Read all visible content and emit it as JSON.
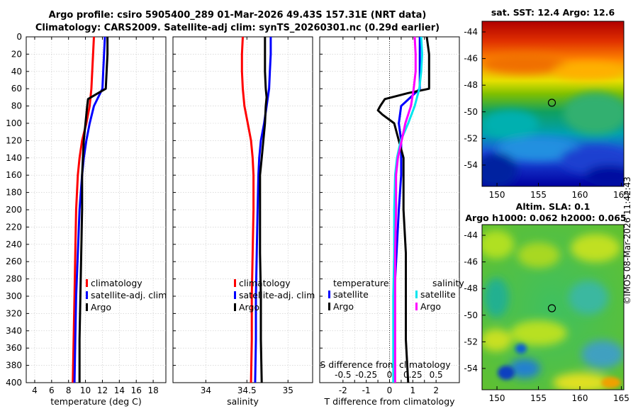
{
  "header": {
    "line1": "Argo profile: csiro 5905400_289 01-Mar-2026 49.43S 157.31E (NRT data)",
    "line2": "Climatology: CARS2009. Satellite-adj clim: synTS_20260301.nc (0.29d earlier)"
  },
  "maps": {
    "sst_title": "sat. SST: 12.4 Argo: 12.6",
    "sla_title1": "Altim. SLA: 0.1",
    "sla_title2": "Argo h1000: 0.062 h2000: 0.065",
    "lat_ticks": [
      "-44",
      "-46",
      "-48",
      "-50",
      "-52",
      "-54"
    ],
    "lon_ticks": [
      "150",
      "155",
      "160",
      "165"
    ]
  },
  "credit": "©IMOS 08-Mar-2026 11:42:43",
  "colors": {
    "climatology": "#ff0000",
    "satellite": "#0000ff",
    "argo": "#000000",
    "sal_satellite": "#00e5ee",
    "sal_argo": "#ff00ff"
  },
  "chart_data": [
    {
      "type": "line",
      "title": "",
      "xlabel": "temperature (deg C)",
      "ylabel": "",
      "xlim": [
        3,
        19.5
      ],
      "ylim": [
        400,
        0
      ],
      "x_ticks": [
        "4",
        "6",
        "8",
        "10",
        "12",
        "14",
        "16",
        "18"
      ],
      "y_ticks": [
        "0",
        "20",
        "40",
        "60",
        "80",
        "100",
        "120",
        "140",
        "160",
        "180",
        "200",
        "220",
        "240",
        "260",
        "280",
        "300",
        "320",
        "340",
        "360",
        "380",
        "400"
      ],
      "legend": [
        "climatology",
        "satellite-adj. clim",
        "Argo"
      ],
      "series": [
        {
          "name": "climatology",
          "depth": [
            0,
            20,
            40,
            60,
            80,
            100,
            120,
            140,
            160,
            200,
            250,
            300,
            350,
            400
          ],
          "values": [
            11.0,
            10.9,
            10.8,
            10.7,
            10.5,
            10.1,
            9.6,
            9.3,
            9.1,
            8.9,
            8.8,
            8.7,
            8.6,
            8.5
          ]
        },
        {
          "name": "satellite-adj. clim",
          "depth": [
            0,
            20,
            40,
            60,
            80,
            100,
            120,
            140,
            160,
            200,
            250,
            300,
            350,
            400
          ],
          "values": [
            12.3,
            12.2,
            12.1,
            12.0,
            11.0,
            10.5,
            10.1,
            9.8,
            9.6,
            9.3,
            9.1,
            8.9,
            8.8,
            8.7
          ]
        },
        {
          "name": "Argo",
          "depth": [
            0,
            10,
            20,
            40,
            60,
            65,
            72,
            80,
            100,
            120,
            140,
            160,
            200,
            250,
            300,
            350,
            400
          ],
          "values": [
            12.6,
            12.6,
            12.6,
            12.5,
            12.4,
            11.5,
            10.3,
            10.2,
            10.0,
            9.8,
            9.7,
            9.6,
            9.6,
            9.5,
            9.4,
            9.3,
            9.3
          ]
        }
      ]
    },
    {
      "type": "line",
      "title": "",
      "xlabel": "salinity",
      "ylabel": "",
      "xlim": [
        33.6,
        35.3
      ],
      "ylim": [
        400,
        0
      ],
      "x_ticks": [
        "34",
        "34.5",
        "35"
      ],
      "legend": [
        "climatology",
        "satellite-adj. clim",
        "Argo"
      ],
      "series": [
        {
          "name": "climatology",
          "depth": [
            0,
            20,
            40,
            60,
            80,
            100,
            120,
            140,
            160,
            200,
            250,
            300,
            350,
            400
          ],
          "values": [
            34.45,
            34.44,
            34.44,
            34.45,
            34.47,
            34.51,
            34.55,
            34.57,
            34.58,
            34.58,
            34.57,
            34.56,
            34.56,
            34.55
          ]
        },
        {
          "name": "satellite-adj. clim",
          "depth": [
            0,
            20,
            40,
            60,
            80,
            100,
            120,
            140,
            160,
            200,
            250,
            300,
            350,
            400
          ],
          "values": [
            34.79,
            34.79,
            34.78,
            34.77,
            34.74,
            34.71,
            34.67,
            34.65,
            34.64,
            34.63,
            34.62,
            34.61,
            34.61,
            34.6
          ]
        },
        {
          "name": "Argo",
          "depth": [
            0,
            20,
            40,
            60,
            70,
            80,
            100,
            120,
            140,
            160,
            200,
            250,
            300,
            350,
            400
          ],
          "values": [
            34.72,
            34.72,
            34.72,
            34.73,
            34.74,
            34.73,
            34.72,
            34.7,
            34.68,
            34.66,
            34.66,
            34.66,
            34.67,
            34.67,
            34.68
          ]
        }
      ]
    },
    {
      "type": "line",
      "title": "",
      "xlabel": "T difference from climatology",
      "x2label": "S difference from climatology",
      "ylabel": "",
      "xlim": [
        -3,
        3
      ],
      "ylim": [
        400,
        0
      ],
      "x_ticks": [
        "-2",
        "-1.5",
        "-1",
        "-0.5",
        "0",
        "0.5",
        "1",
        "1.5",
        "2"
      ],
      "x2_ticks": [
        "-0.5",
        "-0.25",
        "0",
        "0.25",
        "0.5"
      ],
      "legend_headers": [
        "temperature",
        "salinity"
      ],
      "legend": [
        "satellite",
        "Argo",
        "satellite",
        "Argo"
      ],
      "series": [
        {
          "name": "temperature satellite",
          "depth": [
            0,
            20,
            40,
            60,
            80,
            100,
            120,
            140,
            160,
            200,
            250,
            300,
            350,
            400
          ],
          "values": [
            1.3,
            1.3,
            1.3,
            1.3,
            0.5,
            0.4,
            0.5,
            0.5,
            0.5,
            0.4,
            0.3,
            0.2,
            0.2,
            0.2
          ]
        },
        {
          "name": "temperature Argo",
          "depth": [
            0,
            20,
            40,
            60,
            65,
            72,
            80,
            85,
            90,
            100,
            120,
            140,
            160,
            200,
            250,
            300,
            350,
            400
          ],
          "values": [
            1.6,
            1.7,
            1.7,
            1.7,
            0.8,
            -0.2,
            -0.4,
            -0.5,
            -0.3,
            0.2,
            0.4,
            0.6,
            0.6,
            0.6,
            0.7,
            0.7,
            0.7,
            0.8
          ]
        },
        {
          "name": "salinity satellite",
          "depth": [
            0,
            20,
            40,
            60,
            80,
            100,
            120,
            140,
            160,
            200,
            250,
            300,
            350,
            400
          ],
          "values": [
            0.34,
            0.35,
            0.34,
            0.32,
            0.27,
            0.2,
            0.12,
            0.08,
            0.06,
            0.05,
            0.05,
            0.04,
            0.04,
            0.04
          ]
        },
        {
          "name": "salinity Argo",
          "depth": [
            0,
            20,
            40,
            60,
            80,
            100,
            120,
            140,
            160,
            200,
            250,
            300,
            350,
            400
          ],
          "values": [
            0.27,
            0.28,
            0.28,
            0.26,
            0.23,
            0.17,
            0.13,
            0.09,
            0.07,
            0.07,
            0.06,
            0.06,
            0.06,
            0.06
          ]
        }
      ]
    }
  ]
}
